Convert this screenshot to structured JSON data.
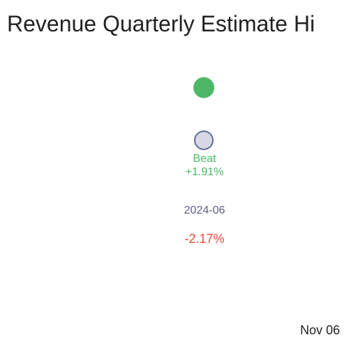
{
  "header": {
    "title": "Revenue Quarterly Estimate Hi"
  },
  "footer": {
    "date": "Nov 06"
  },
  "chart_data": {
    "type": "scatter",
    "categories": [
      "2024-06"
    ],
    "series": [
      {
        "role": "actual",
        "color": "#4cb866",
        "values": [
          1.91
        ]
      },
      {
        "role": "estimate",
        "color": "#d7d9e6",
        "stroke": "#666a99",
        "values": [
          0
        ]
      }
    ],
    "labels": {
      "result": "Beat",
      "surprise": "+1.91%",
      "period": "2024-06",
      "change": "-2.17%"
    },
    "colors": {
      "beat": "#4cb866",
      "period": "#5a5e82",
      "negative": "#e64b3c"
    },
    "grid": false,
    "legend": "none"
  }
}
